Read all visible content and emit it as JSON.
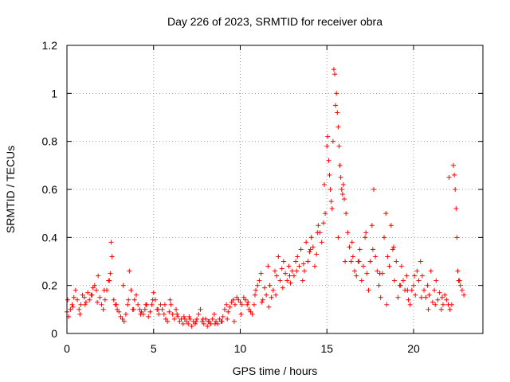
{
  "chart_data": {
    "type": "scatter",
    "title": "Day 226 of 2023, SRMTID for receiver obra",
    "xlabel": "GPS time / hours",
    "ylabel": "SRMTID / TECUs",
    "xlim": [
      0,
      24
    ],
    "ylim": [
      0,
      1.2
    ],
    "x_ticks": [
      0,
      5,
      10,
      15,
      20
    ],
    "x_tick_labels": [
      "0",
      "5",
      "10",
      "15",
      "20"
    ],
    "y_ticks": [
      0,
      0.2,
      0.4,
      0.6,
      0.8,
      1.0,
      1.2
    ],
    "y_tick_labels": [
      "0",
      "0.2",
      "0.4",
      "0.6",
      "0.8",
      "1",
      "1.2"
    ],
    "grid": true,
    "marker": "+",
    "marker_color": "#ff0000",
    "series": [
      {
        "name": "SRMTID",
        "x": [
          0.0,
          0.1,
          0.2,
          0.3,
          0.4,
          0.5,
          0.6,
          0.7,
          0.8,
          0.9,
          1.0,
          1.1,
          1.2,
          1.3,
          1.4,
          1.5,
          1.6,
          1.7,
          1.8,
          1.9,
          2.0,
          2.1,
          2.2,
          2.3,
          2.4,
          2.5,
          2.55,
          2.6,
          2.7,
          2.8,
          2.9,
          3.0,
          3.1,
          3.2,
          3.3,
          3.4,
          3.5,
          3.6,
          3.7,
          3.8,
          3.9,
          4.0,
          4.1,
          4.2,
          4.3,
          4.4,
          4.5,
          4.6,
          4.7,
          4.8,
          4.9,
          5.0,
          5.1,
          5.2,
          5.3,
          5.4,
          5.5,
          5.6,
          5.7,
          5.8,
          5.9,
          6.0,
          6.1,
          6.2,
          6.3,
          6.4,
          6.5,
          6.6,
          6.7,
          6.8,
          6.9,
          7.0,
          7.1,
          7.2,
          7.3,
          7.4,
          7.5,
          7.6,
          7.7,
          7.8,
          7.9,
          8.0,
          8.1,
          8.2,
          8.3,
          8.4,
          8.5,
          8.6,
          8.7,
          8.8,
          8.9,
          9.0,
          9.1,
          9.2,
          9.3,
          9.4,
          9.5,
          9.6,
          9.7,
          9.8,
          9.9,
          10.0,
          10.1,
          10.2,
          10.3,
          10.4,
          10.5,
          10.6,
          10.7,
          10.8,
          10.9,
          11.0,
          11.1,
          11.2,
          11.3,
          11.4,
          11.5,
          11.6,
          11.7,
          11.8,
          11.9,
          12.0,
          12.1,
          12.2,
          12.3,
          12.4,
          12.5,
          12.6,
          12.7,
          12.8,
          12.9,
          13.0,
          13.1,
          13.2,
          13.3,
          13.4,
          13.5,
          13.6,
          13.7,
          13.8,
          13.9,
          14.0,
          14.1,
          14.2,
          14.3,
          14.4,
          14.5,
          14.6,
          14.7,
          14.8,
          14.9,
          15.0,
          15.05,
          15.1,
          15.15,
          15.2,
          15.3,
          15.35,
          15.4,
          15.45,
          15.5,
          15.55,
          15.6,
          15.65,
          15.7,
          15.75,
          15.8,
          15.85,
          15.9,
          15.95,
          16.0,
          16.1,
          16.2,
          16.3,
          16.4,
          16.5,
          16.6,
          16.7,
          16.8,
          16.9,
          17.0,
          17.1,
          17.2,
          17.3,
          17.4,
          17.5,
          17.6,
          17.7,
          17.8,
          17.9,
          18.0,
          18.1,
          18.2,
          18.3,
          18.4,
          18.5,
          18.6,
          18.7,
          18.8,
          18.9,
          19.0,
          19.1,
          19.2,
          19.3,
          19.4,
          19.5,
          19.6,
          19.7,
          19.8,
          19.9,
          20.0,
          20.1,
          20.2,
          20.3,
          20.4,
          20.5,
          20.6,
          20.7,
          20.8,
          20.9,
          21.0,
          21.1,
          21.2,
          21.3,
          21.4,
          21.5,
          21.6,
          21.7,
          21.8,
          21.9,
          22.0,
          22.1,
          22.2,
          22.3,
          22.35,
          22.4,
          22.45,
          22.5,
          22.55,
          22.6,
          22.7,
          22.8,
          22.9,
          0.05,
          0.35,
          0.75,
          1.05,
          1.45,
          1.75,
          2.15,
          2.45,
          2.85,
          3.25,
          3.55,
          3.85,
          4.25,
          4.55,
          4.95,
          5.25,
          5.65,
          5.95,
          6.35,
          6.75,
          7.05,
          7.45,
          7.85,
          8.15,
          8.55,
          8.95,
          9.25,
          9.65,
          10.05,
          10.45,
          10.85,
          11.25,
          11.65,
          12.05,
          12.45,
          12.85,
          13.25,
          13.65,
          14.05,
          14.45,
          14.85,
          15.25,
          15.65,
          16.05,
          16.45,
          16.85,
          17.25,
          17.65,
          18.05,
          18.45,
          18.85,
          19.25,
          19.65,
          20.05,
          20.45,
          20.85,
          21.25,
          21.65,
          22.05,
          22.65
        ],
        "y": [
          0.09,
          0.07,
          0.1,
          0.12,
          0.15,
          0.18,
          0.14,
          0.1,
          0.12,
          0.16,
          0.15,
          0.13,
          0.17,
          0.14,
          0.16,
          0.19,
          0.2,
          0.18,
          0.24,
          0.15,
          0.12,
          0.1,
          0.14,
          0.18,
          0.22,
          0.25,
          0.38,
          0.32,
          0.14,
          0.12,
          0.1,
          0.09,
          0.07,
          0.06,
          0.05,
          0.08,
          0.12,
          0.26,
          0.18,
          0.1,
          0.14,
          0.16,
          0.12,
          0.1,
          0.09,
          0.08,
          0.1,
          0.12,
          0.07,
          0.09,
          0.12,
          0.17,
          0.14,
          0.1,
          0.08,
          0.12,
          0.1,
          0.08,
          0.06,
          0.05,
          0.09,
          0.12,
          0.08,
          0.06,
          0.1,
          0.07,
          0.05,
          0.06,
          0.04,
          0.06,
          0.05,
          0.04,
          0.06,
          0.03,
          0.05,
          0.04,
          0.06,
          0.08,
          0.1,
          0.05,
          0.04,
          0.06,
          0.03,
          0.05,
          0.04,
          0.06,
          0.08,
          0.05,
          0.04,
          0.06,
          0.05,
          0.07,
          0.1,
          0.12,
          0.09,
          0.11,
          0.13,
          0.14,
          0.12,
          0.15,
          0.14,
          0.13,
          0.12,
          0.15,
          0.14,
          0.12,
          0.1,
          0.09,
          0.08,
          0.12,
          0.18,
          0.2,
          0.22,
          0.25,
          0.14,
          0.19,
          0.16,
          0.28,
          0.2,
          0.15,
          0.18,
          0.26,
          0.24,
          0.32,
          0.22,
          0.27,
          0.3,
          0.25,
          0.22,
          0.28,
          0.21,
          0.26,
          0.24,
          0.3,
          0.32,
          0.28,
          0.35,
          0.22,
          0.26,
          0.38,
          0.3,
          0.34,
          0.4,
          0.36,
          0.28,
          0.33,
          0.45,
          0.42,
          0.38,
          0.46,
          0.5,
          0.78,
          0.82,
          0.72,
          0.66,
          0.6,
          0.52,
          0.8,
          1.1,
          1.08,
          0.95,
          1.0,
          0.92,
          0.86,
          0.78,
          0.7,
          0.65,
          0.6,
          0.58,
          0.62,
          0.56,
          0.5,
          0.42,
          0.36,
          0.3,
          0.32,
          0.26,
          0.24,
          0.3,
          0.35,
          0.22,
          0.28,
          0.4,
          0.25,
          0.18,
          0.3,
          0.45,
          0.6,
          0.32,
          0.26,
          0.2,
          0.15,
          0.25,
          0.4,
          0.5,
          0.32,
          0.28,
          0.45,
          0.35,
          0.22,
          0.3,
          0.15,
          0.2,
          0.28,
          0.22,
          0.18,
          0.24,
          0.14,
          0.12,
          0.18,
          0.2,
          0.16,
          0.26,
          0.22,
          0.3,
          0.24,
          0.18,
          0.15,
          0.2,
          0.16,
          0.26,
          0.13,
          0.18,
          0.22,
          0.14,
          0.17,
          0.1,
          0.12,
          0.16,
          0.14,
          0.12,
          0.1,
          0.12,
          0.7,
          0.66,
          0.6,
          0.52,
          0.4,
          0.26,
          0.22,
          0.2,
          0.18,
          0.16,
          0.14,
          0.11,
          0.08,
          0.12,
          0.16,
          0.13,
          0.18,
          0.22,
          0.12,
          0.2,
          0.14,
          0.1,
          0.08,
          0.12,
          0.14,
          0.1,
          0.12,
          0.14,
          0.08,
          0.07,
          0.07,
          0.05,
          0.06,
          0.05,
          0.04,
          0.05,
          0.06,
          0.05,
          0.08,
          0.13,
          0.16,
          0.13,
          0.11,
          0.16,
          0.19,
          0.24,
          0.26,
          0.29,
          0.35,
          0.42,
          0.62,
          0.55,
          0.4,
          0.3,
          0.38,
          0.3,
          0.42,
          0.35,
          0.25,
          0.12,
          0.36,
          0.2,
          0.18,
          0.24,
          0.15,
          0.1,
          0.12,
          0.15,
          0.65,
          0.22
        ]
      }
    ]
  }
}
